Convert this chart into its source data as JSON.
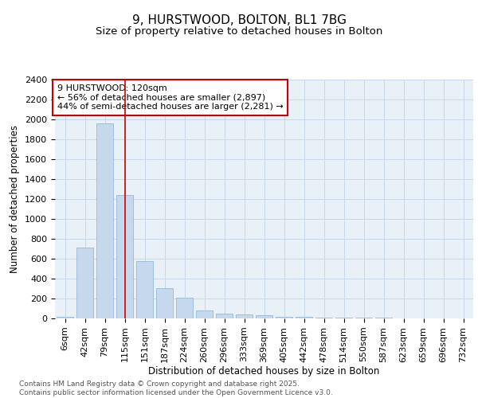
{
  "title1": "9, HURSTWOOD, BOLTON, BL1 7BG",
  "title2": "Size of property relative to detached houses in Bolton",
  "xlabel": "Distribution of detached houses by size in Bolton",
  "ylabel": "Number of detached properties",
  "categories": [
    "6sqm",
    "42sqm",
    "79sqm",
    "115sqm",
    "151sqm",
    "187sqm",
    "224sqm",
    "260sqm",
    "296sqm",
    "333sqm",
    "369sqm",
    "405sqm",
    "442sqm",
    "478sqm",
    "514sqm",
    "550sqm",
    "587sqm",
    "623sqm",
    "659sqm",
    "696sqm",
    "732sqm"
  ],
  "values": [
    15,
    710,
    1960,
    1240,
    575,
    305,
    205,
    80,
    45,
    38,
    35,
    18,
    18,
    12,
    12,
    5,
    5,
    2,
    2,
    1,
    1
  ],
  "bar_color": "#c5d8ec",
  "bar_edge_color": "#8aafd0",
  "grid_color": "#c8d8e8",
  "background_color": "#e8f0f8",
  "annotation_box_color": "#cc0000",
  "vline_color": "#cc0000",
  "vline_position": 3,
  "annotation_text": "9 HURSTWOOD: 120sqm\n← 56% of detached houses are smaller (2,897)\n44% of semi-detached houses are larger (2,281) →",
  "footnote": "Contains HM Land Registry data © Crown copyright and database right 2025.\nContains public sector information licensed under the Open Government Licence v3.0.",
  "ylim": [
    0,
    2400
  ],
  "yticks": [
    0,
    200,
    400,
    600,
    800,
    1000,
    1200,
    1400,
    1600,
    1800,
    2000,
    2200,
    2400
  ],
  "title_fontsize": 11,
  "subtitle_fontsize": 9.5,
  "axis_label_fontsize": 8.5,
  "tick_fontsize": 8,
  "annotation_fontsize": 8,
  "footnote_fontsize": 6.5
}
